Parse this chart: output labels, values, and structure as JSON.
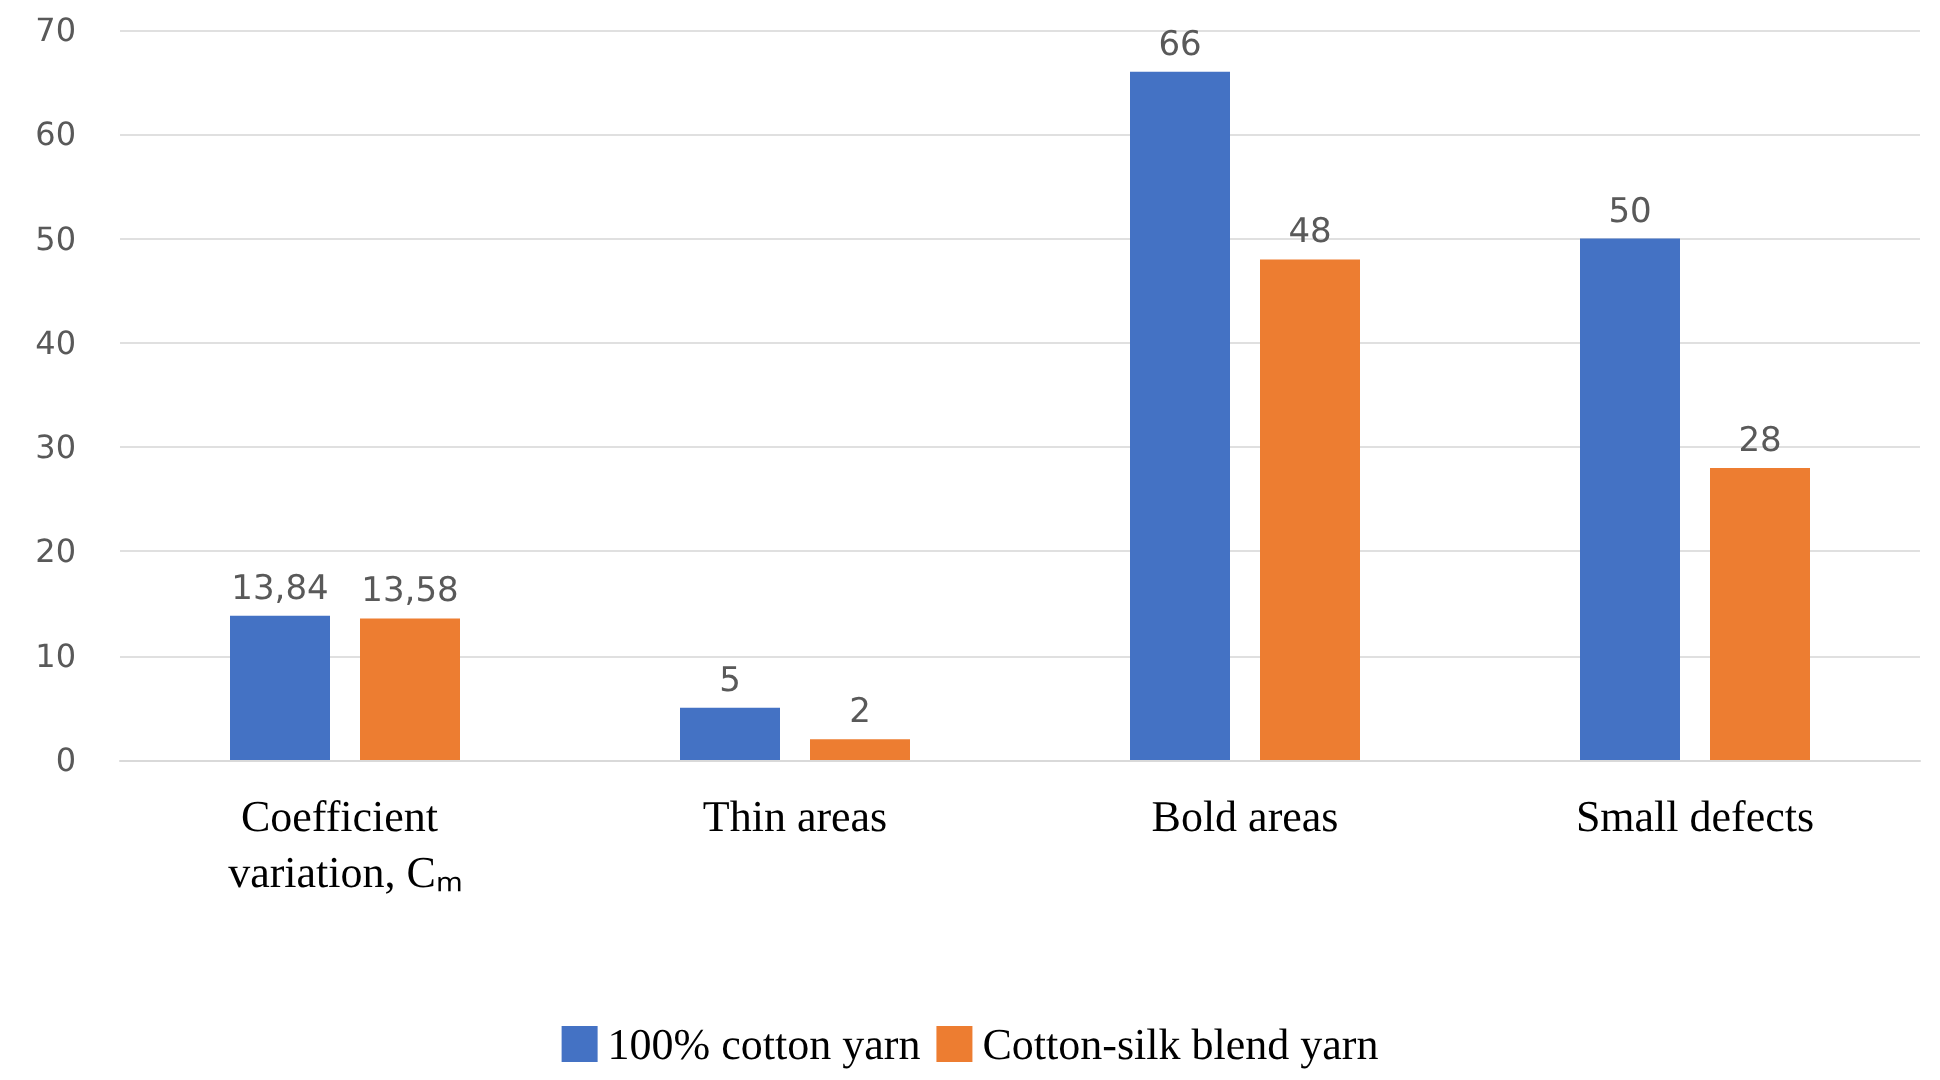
{
  "chart_data": {
    "type": "bar",
    "categories": [
      "Coefficient variation, Cₘ",
      "Thin areas",
      "Bold areas",
      "Small defects"
    ],
    "series": [
      {
        "name": "100% cotton yarn",
        "color": "#4472c4",
        "values": [
          13.84,
          5,
          66,
          50
        ],
        "value_labels": [
          "13,84",
          "5",
          "66",
          "50"
        ]
      },
      {
        "name": "Cotton-silk blend yarn",
        "color": "#ed7d31",
        "values": [
          13.58,
          2,
          48,
          28
        ],
        "value_labels": [
          "13,58",
          "2",
          "48",
          "28"
        ]
      }
    ],
    "ylim": [
      0,
      70
    ],
    "yticks": [
      0,
      10,
      20,
      30,
      40,
      50,
      60,
      70
    ],
    "grid": "y",
    "legend": "bottom"
  }
}
